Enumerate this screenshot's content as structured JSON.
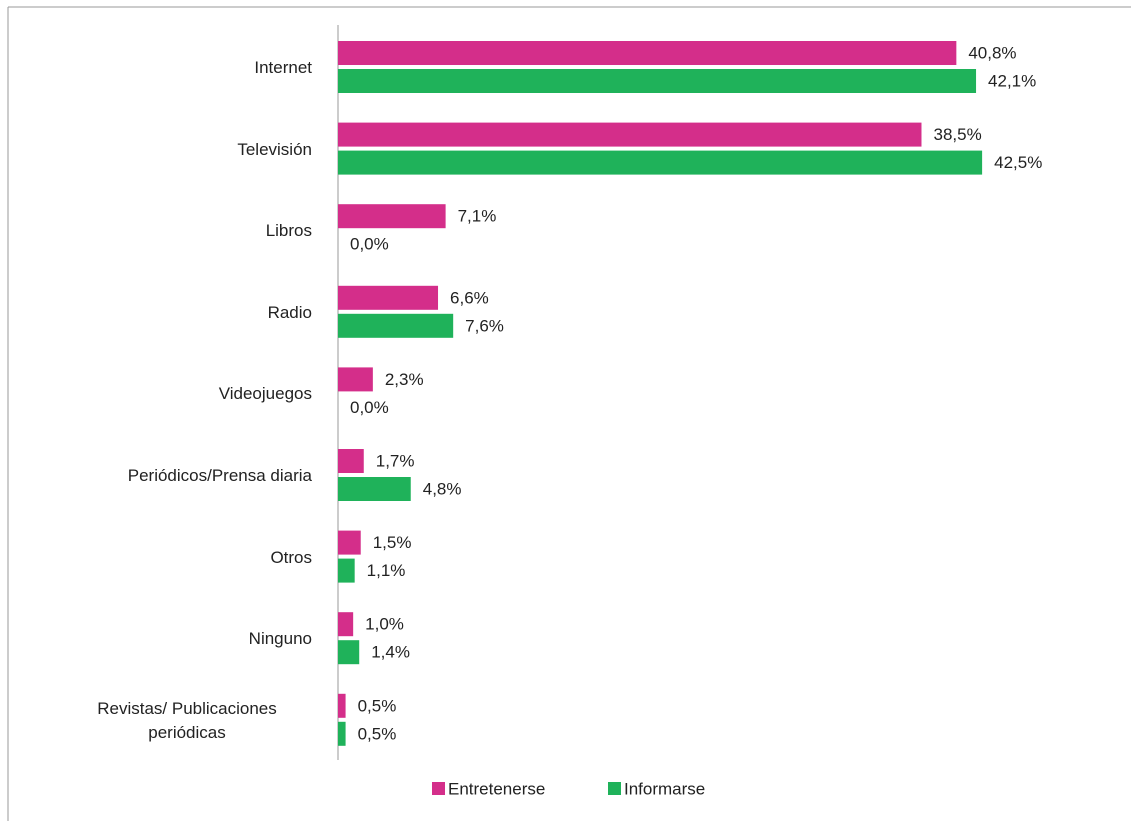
{
  "chart_data": {
    "type": "bar",
    "orientation": "horizontal",
    "categories": [
      "Internet",
      "Televisión",
      "Libros",
      "Radio",
      "Videojuegos",
      "Periódicos/Prensa diaria",
      "Otros",
      "Ninguno",
      "Revistas/ Publicaciones periódicas"
    ],
    "series": [
      {
        "name": "Entretenerse",
        "color": "#d42e8a",
        "values": [
          40.8,
          38.5,
          7.1,
          6.6,
          2.3,
          1.7,
          1.5,
          1.0,
          0.5
        ],
        "value_labels": [
          "40,8%",
          "38,5%",
          "7,1%",
          "6,6%",
          "2,3%",
          "1,7%",
          "1,5%",
          "1,0%",
          "0,5%"
        ]
      },
      {
        "name": "Informarse",
        "color": "#1fb25a",
        "values": [
          42.1,
          42.5,
          0.0,
          7.6,
          0.0,
          4.8,
          1.1,
          1.4,
          0.5
        ],
        "value_labels": [
          "42,1%",
          "42,5%",
          "0,0%",
          "7,6%",
          "0,0%",
          "4,8%",
          "1,1%",
          "1,4%",
          "0,5%"
        ]
      }
    ],
    "xlim": [
      0,
      45
    ],
    "legend": "bottom"
  }
}
